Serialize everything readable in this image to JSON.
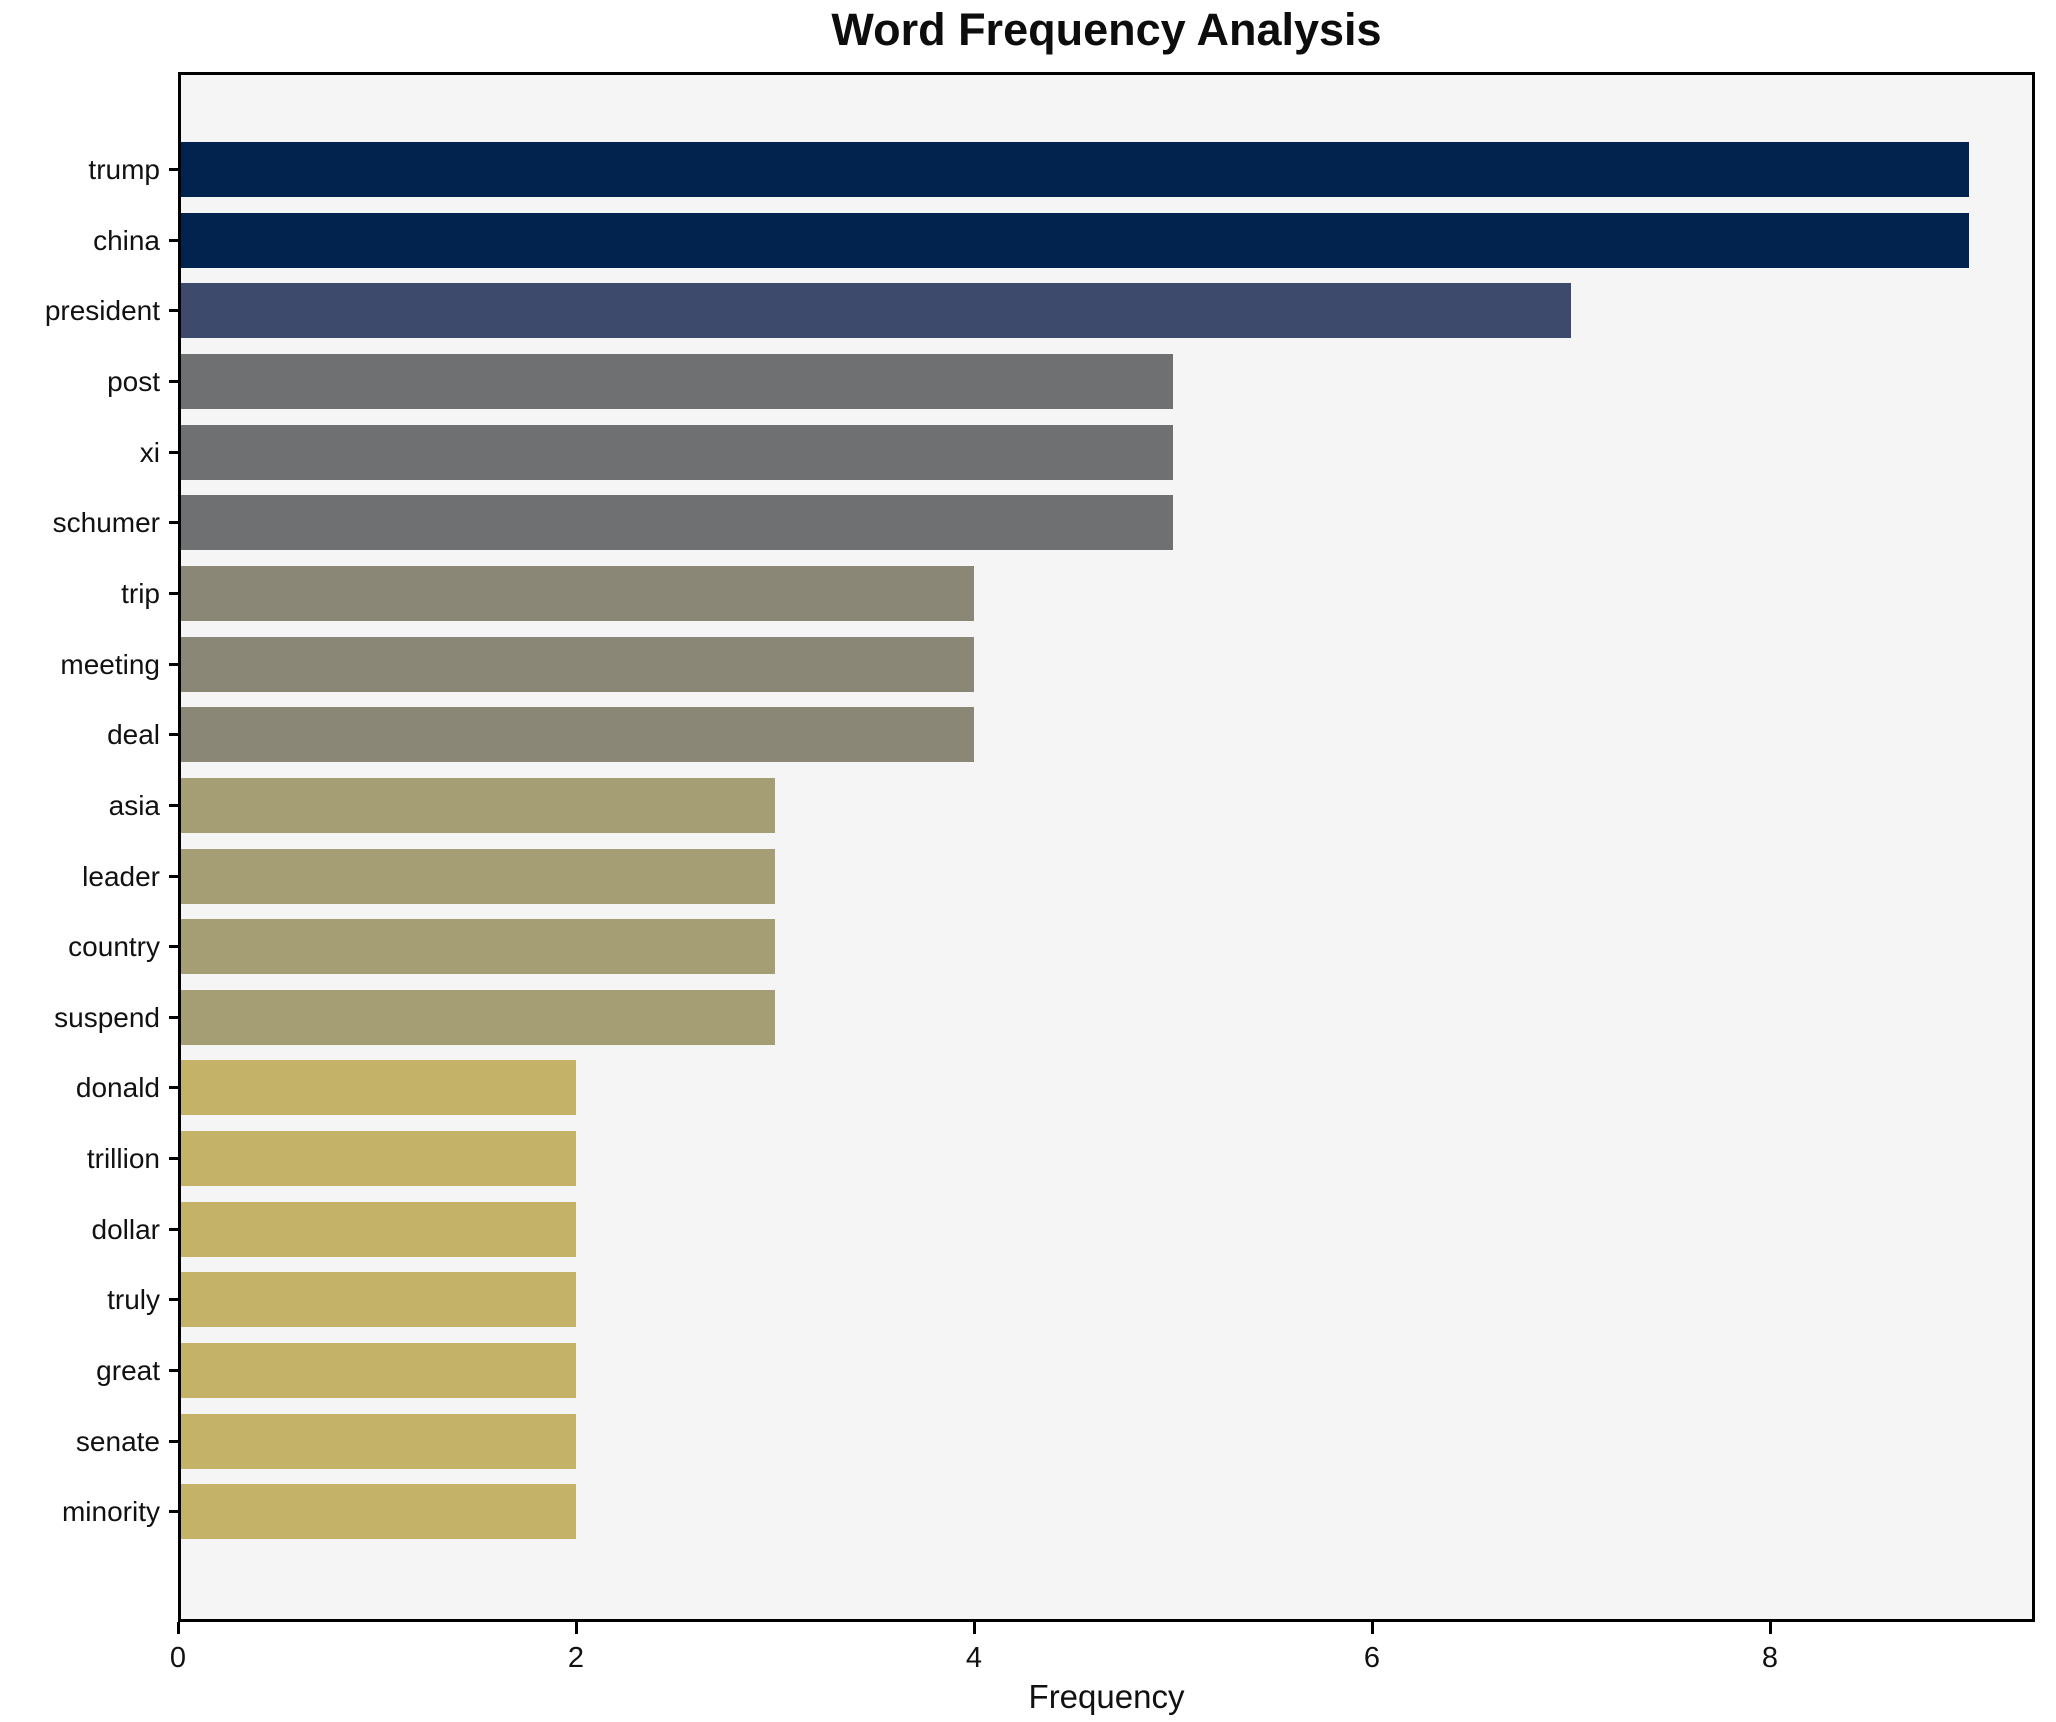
{
  "title": "Word Frequency Analysis",
  "xlabel": "Frequency",
  "colors": {
    "figure_background": "#ffffff",
    "plot_background": "#f5f5f6",
    "spine": "#000000",
    "text": "#111111",
    "freq9": "#03234f",
    "freq7": "#3d4a6b",
    "freq5": "#6f7071",
    "freq4": "#8b8777",
    "freq3": "#a59d73",
    "freq2": "#c3b267"
  },
  "chart_data": {
    "type": "bar",
    "orientation": "horizontal",
    "title": "Word Frequency Analysis",
    "xlabel": "Frequency",
    "ylabel": "",
    "xlim": [
      0,
      9.33
    ],
    "x_ticks": [
      0,
      2,
      4,
      6,
      8
    ],
    "grid": false,
    "legend": "none",
    "categories": [
      "trump",
      "china",
      "president",
      "post",
      "xi",
      "schumer",
      "trip",
      "meeting",
      "deal",
      "asia",
      "leader",
      "country",
      "suspend",
      "donald",
      "trillion",
      "dollar",
      "truly",
      "great",
      "senate",
      "minority"
    ],
    "values": [
      9,
      9,
      7,
      5,
      5,
      5,
      4,
      4,
      4,
      3,
      3,
      3,
      3,
      2,
      2,
      2,
      2,
      2,
      2,
      2
    ],
    "bar_colors": [
      "#03234f",
      "#03234f",
      "#3d4a6b",
      "#6f7071",
      "#6f7071",
      "#6f7071",
      "#8b8777",
      "#8b8777",
      "#8b8777",
      "#a59d73",
      "#a59d73",
      "#a59d73",
      "#a59d73",
      "#c3b267",
      "#c3b267",
      "#c3b267",
      "#c3b267",
      "#c3b267",
      "#c3b267",
      "#c3b267"
    ]
  }
}
